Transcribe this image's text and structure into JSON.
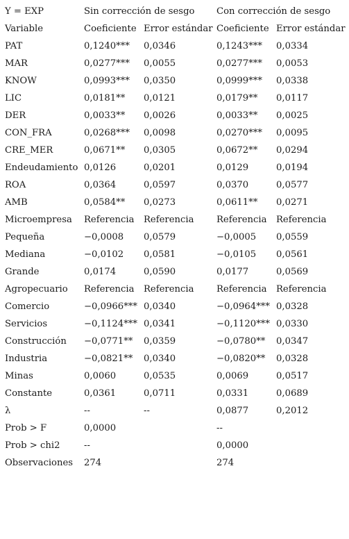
{
  "header": {
    "dep_var": "Y = EXP",
    "group1": "Sin corrección de sesgo",
    "group2": "Con corrección de sesgo"
  },
  "subheader": {
    "variable": "Variable",
    "coef1": "Coeficiente",
    "err1": "Error estándar",
    "coef2": "Coeficiente",
    "err2": "Error estándar"
  },
  "rows": [
    {
      "var": "PAT",
      "c1": "0,1240***",
      "e1": "0,0346",
      "c2": "0,1243***",
      "e2": "0,0334"
    },
    {
      "var": "MAR",
      "c1": "0,0277***",
      "e1": "0,0055",
      "c2": "0,0277***",
      "e2": "0,0053"
    },
    {
      "var": "KNOW",
      "c1": "0,0993***",
      "e1": "0,0350",
      "c2": "0,0999***",
      "e2": "0,0338"
    },
    {
      "var": "LIC",
      "c1": "0,0181**",
      "e1": "0,0121",
      "c2": "0,0179**",
      "e2": "0,0117"
    },
    {
      "var": "DER",
      "c1": "0,0033**",
      "e1": "0,0026",
      "c2": "0,0033**",
      "e2": "0,0025"
    },
    {
      "var": "CON_FRA",
      "c1": "0,0268***",
      "e1": "0,0098",
      "c2": "0,0270***",
      "e2": "0,0095"
    },
    {
      "var": "CRE_MER",
      "c1": "0,0671**",
      "e1": "0,0305",
      "c2": "0,0672**",
      "e2": "0,0294"
    },
    {
      "var": "Endeudamiento",
      "c1": "0,0126",
      "e1": "0,0201",
      "c2": "0,0129",
      "e2": "0,0194"
    },
    {
      "var": "ROA",
      "c1": "0,0364",
      "e1": "0,0597",
      "c2": "0,0370",
      "e2": "0,0577"
    },
    {
      "var": "AMB",
      "c1": "0,0584**",
      "e1": "0,0273",
      "c2": "0,0611**",
      "e2": "0,0271"
    },
    {
      "var": "Microempresa",
      "c1": "Referencia",
      "e1": "Referencia",
      "c2": "Referencia",
      "e2": "Referencia"
    },
    {
      "var": "Pequeña",
      "c1": "−0,0008",
      "e1": "0,0579",
      "c2": "−0,0005",
      "e2": "0,0559"
    },
    {
      "var": "Mediana",
      "c1": "−0,0102",
      "e1": "0,0581",
      "c2": "−0,0105",
      "e2": "0,0561"
    },
    {
      "var": "Grande",
      "c1": "0,0174",
      "e1": "0,0590",
      "c2": "0,0177",
      "e2": "0,0569"
    },
    {
      "var": "Agropecuario",
      "c1": "Referencia",
      "e1": "Referencia",
      "c2": "Referencia",
      "e2": "Referencia"
    },
    {
      "var": "Comercio",
      "c1": "−0,0966***",
      "e1": "0,0340",
      "c2": "−0,0964***",
      "e2": "0,0328"
    },
    {
      "var": "Servicios",
      "c1": "−0,1124***",
      "e1": "0,0341",
      "c2": "−0,1120***",
      "e2": "0,0330"
    },
    {
      "var": "Construcción",
      "c1": "−0,0771**",
      "e1": "0,0359",
      "c2": "−0,0780**",
      "e2": "0,0347"
    },
    {
      "var": "Industria",
      "c1": "−0,0821**",
      "e1": "0,0340",
      "c2": "−0,0820**",
      "e2": "0,0328"
    },
    {
      "var": "Minas",
      "c1": "0,0060",
      "e1": "0,0535",
      "c2": "0,0069",
      "e2": "0,0517"
    },
    {
      "var": "Constante",
      "c1": "0,0361",
      "e1": "0,0711",
      "c2": "0,0331",
      "e2": "0,0689"
    },
    {
      "var": "λ",
      "c1": "--",
      "e1": "--",
      "c2": "0,0877",
      "e2": "0,2012"
    },
    {
      "var": "Prob > F",
      "c1": "0,0000",
      "e1": "",
      "c2": "--",
      "e2": ""
    },
    {
      "var": "Prob > chi2",
      "c1": "--",
      "e1": "",
      "c2": "0,0000",
      "e2": ""
    },
    {
      "var": "Observaciones",
      "c1": "274",
      "e1": "",
      "c2": "274",
      "e2": ""
    }
  ]
}
